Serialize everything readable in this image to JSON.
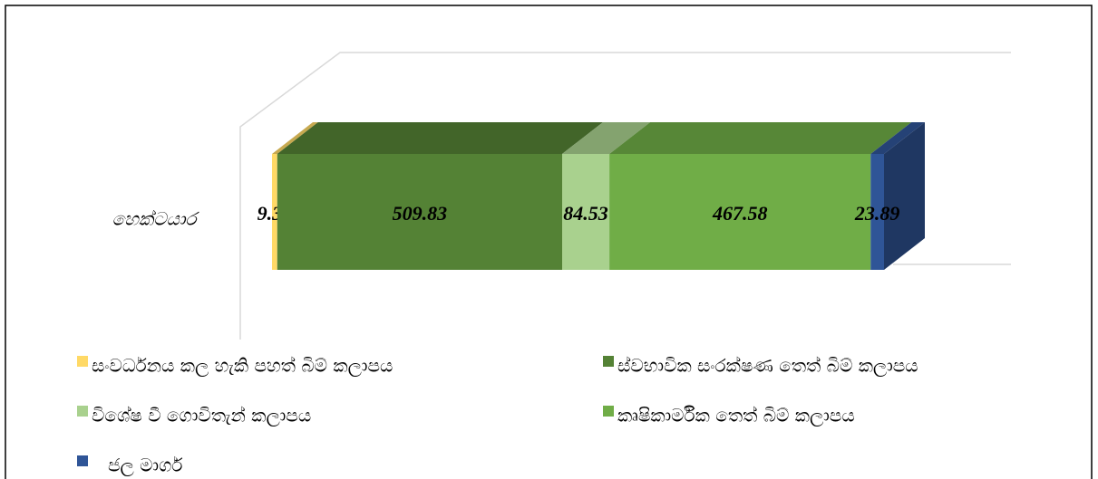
{
  "chart_data": {
    "type": "bar",
    "orientation": "horizontal",
    "stacked": true,
    "three_d": true,
    "categories": [
      "හෙක්ටයාර"
    ],
    "series": [
      {
        "name": "සංවර්ධනය කල හැකි පහත් බිම් කලාපය",
        "color": "#ffd966",
        "values": [
          9.39
        ]
      },
      {
        "name": "ස්වභාවික සංරක්ෂණ තෙත් බිම් කලාපය",
        "color": "#548235",
        "values": [
          509.83
        ]
      },
      {
        "name": "විශේෂ වී ගොවිතැන් කලාපය",
        "color": "#a9d18e",
        "values": [
          84.53
        ]
      },
      {
        "name": "කෘෂිකාර්මික තෙත් බිම් කලාපය",
        "color": "#70ad47",
        "values": [
          467.58
        ]
      },
      {
        "name": "ජල මාර්ග",
        "color": "#2f5597",
        "values": [
          23.89
        ]
      }
    ],
    "legend": "bottom"
  }
}
